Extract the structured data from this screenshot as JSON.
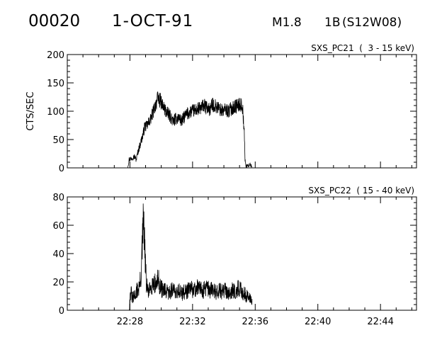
{
  "header": {
    "event_id": "00020",
    "date": "1-OCT-91",
    "goes_class": "M1.8",
    "optical_class": "1B",
    "location": "(S12W08)"
  },
  "chart_data": [
    {
      "type": "line",
      "title": "SXS_PC21  (  3 - 15 keV)",
      "ylabel": "CTS/SEC",
      "xlabel": "",
      "x_unit": "UT time (decimal minutes after 22:00)",
      "xlim": [
        24.0,
        46.3
      ],
      "ylim": [
        0,
        200
      ],
      "yticks": [
        0,
        50,
        100,
        150,
        200
      ],
      "xticks": [
        28,
        32,
        36,
        40,
        44
      ],
      "xtick_labels": [
        "22:28",
        "22:32",
        "22:36",
        "22:40",
        "22:44"
      ],
      "show_xtick_labels": false,
      "grid": false,
      "series": [
        {
          "points": [
            [
              27.85,
              0
            ],
            [
              27.95,
              15
            ],
            [
              28.1,
              17
            ],
            [
              28.3,
              20
            ],
            [
              28.4,
              14
            ],
            [
              28.5,
              27
            ],
            [
              28.7,
              46
            ],
            [
              28.85,
              60
            ],
            [
              28.95,
              74
            ],
            [
              29.05,
              73
            ],
            [
              29.2,
              80
            ],
            [
              29.35,
              88
            ],
            [
              29.5,
              100
            ],
            [
              29.65,
              113
            ],
            [
              29.8,
              123
            ],
            [
              29.95,
              118
            ],
            [
              30.05,
              112
            ],
            [
              30.2,
              104
            ],
            [
              30.4,
              96
            ],
            [
              30.6,
              90
            ],
            [
              30.75,
              82
            ],
            [
              30.9,
              86
            ],
            [
              31.1,
              89
            ],
            [
              31.3,
              82
            ],
            [
              31.5,
              91
            ],
            [
              31.7,
              96
            ],
            [
              31.9,
              100
            ],
            [
              32.1,
              101
            ],
            [
              32.3,
              103
            ],
            [
              32.5,
              105
            ],
            [
              32.7,
              110
            ],
            [
              32.9,
              106
            ],
            [
              33.1,
              103
            ],
            [
              33.3,
              112
            ],
            [
              33.5,
              108
            ],
            [
              33.7,
              104
            ],
            [
              33.9,
              100
            ],
            [
              34.1,
              103
            ],
            [
              34.3,
              100
            ],
            [
              34.5,
              105
            ],
            [
              34.7,
              108
            ],
            [
              34.9,
              110
            ],
            [
              35.1,
              112
            ],
            [
              35.2,
              105
            ],
            [
              35.3,
              62
            ],
            [
              35.35,
              15
            ],
            [
              35.4,
              4
            ],
            [
              35.5,
              3
            ],
            [
              35.65,
              6
            ],
            [
              35.8,
              2
            ]
          ]
        }
      ]
    },
    {
      "type": "line",
      "title": "SXS_PC22  ( 15 - 40 keV)",
      "ylabel": "",
      "xlabel": "",
      "x_unit": "UT time (decimal minutes after 22:00)",
      "xlim": [
        24.0,
        46.3
      ],
      "ylim": [
        0,
        80
      ],
      "yticks": [
        0,
        20,
        40,
        60,
        80
      ],
      "xticks": [
        28,
        32,
        36,
        40,
        44
      ],
      "xtick_labels": [
        "22:28",
        "22:32",
        "22:36",
        "22:40",
        "22:44"
      ],
      "show_xtick_labels": true,
      "grid": false,
      "series": [
        {
          "points": [
            [
              27.95,
              0
            ],
            [
              28.05,
              14
            ],
            [
              28.15,
              8
            ],
            [
              28.3,
              10
            ],
            [
              28.45,
              14
            ],
            [
              28.55,
              15
            ],
            [
              28.7,
              22
            ],
            [
              28.8,
              48
            ],
            [
              28.87,
              65
            ],
            [
              28.95,
              42
            ],
            [
              29.05,
              18
            ],
            [
              29.2,
              12
            ],
            [
              29.35,
              17
            ],
            [
              29.5,
              20
            ],
            [
              29.65,
              18
            ],
            [
              29.8,
              22
            ],
            [
              29.95,
              16
            ],
            [
              30.1,
              14
            ],
            [
              30.3,
              13
            ],
            [
              30.5,
              12
            ],
            [
              30.7,
              15
            ],
            [
              30.9,
              13
            ],
            [
              31.1,
              14
            ],
            [
              31.3,
              12
            ],
            [
              31.5,
              13
            ],
            [
              31.7,
              14
            ],
            [
              31.9,
              15
            ],
            [
              32.1,
              14
            ],
            [
              32.3,
              16
            ],
            [
              32.5,
              15
            ],
            [
              32.7,
              14
            ],
            [
              32.9,
              16
            ],
            [
              33.1,
              14
            ],
            [
              33.3,
              15
            ],
            [
              33.5,
              13
            ],
            [
              33.7,
              14
            ],
            [
              33.9,
              13
            ],
            [
              34.1,
              14
            ],
            [
              34.3,
              13
            ],
            [
              34.5,
              14
            ],
            [
              34.7,
              13
            ],
            [
              34.9,
              15
            ],
            [
              35.1,
              14
            ],
            [
              35.3,
              12
            ],
            [
              35.45,
              10
            ],
            [
              35.6,
              9
            ],
            [
              35.8,
              8
            ]
          ]
        }
      ]
    }
  ]
}
